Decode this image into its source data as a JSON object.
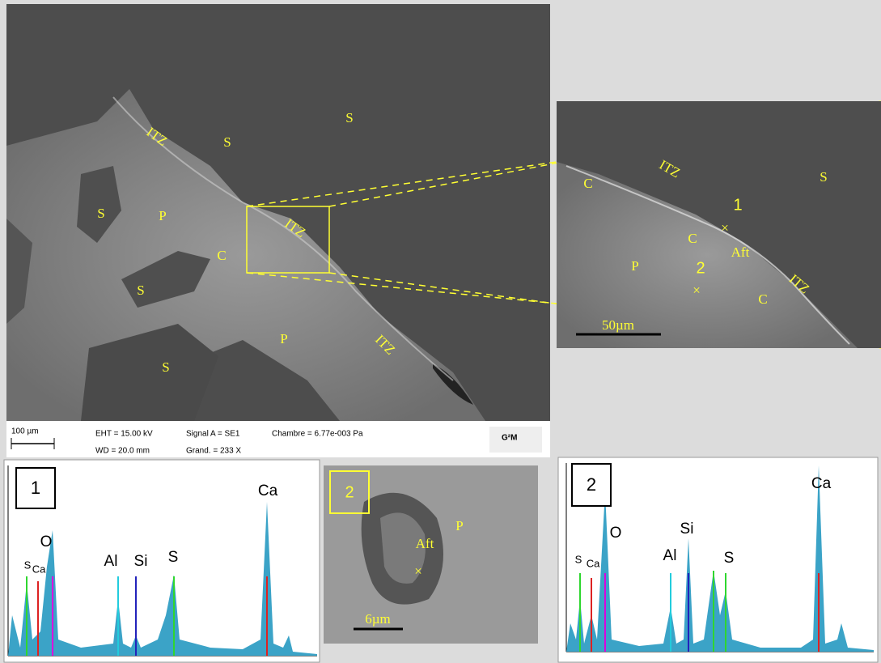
{
  "main_image": {
    "labels": [
      "ITZ",
      "S",
      "S",
      "S",
      "P",
      "ITZ",
      "C",
      "S",
      "P",
      "ITZ",
      "S",
      "S"
    ],
    "scale_bar": "100 µm",
    "info": [
      "EHT = 15.00 kV",
      "Signal A = SE1",
      "Chambre = 6.77e-003 Pa",
      "WD = 20.0 mm",
      "Grand. = 233 X"
    ],
    "logo": "G²M"
  },
  "zoom_image": {
    "labels": [
      "C",
      "ITZ",
      "S",
      "1",
      "×",
      "C",
      "Aft",
      "P",
      "2",
      "×",
      "ITZ",
      "C"
    ],
    "scale_bar": "50µm"
  },
  "detail_image": {
    "id": "2",
    "labels": [
      "Aft",
      "×",
      "P"
    ],
    "scale_bar": "6µm"
  },
  "spectra": [
    {
      "id": "1",
      "peaks": [
        "S",
        "Ca",
        "O",
        "Al",
        "Si",
        "S",
        "Ca"
      ]
    },
    {
      "id": "2",
      "peaks": [
        "S",
        "Ca",
        "O",
        "Al",
        "Si",
        "S",
        "Ca"
      ]
    }
  ]
}
